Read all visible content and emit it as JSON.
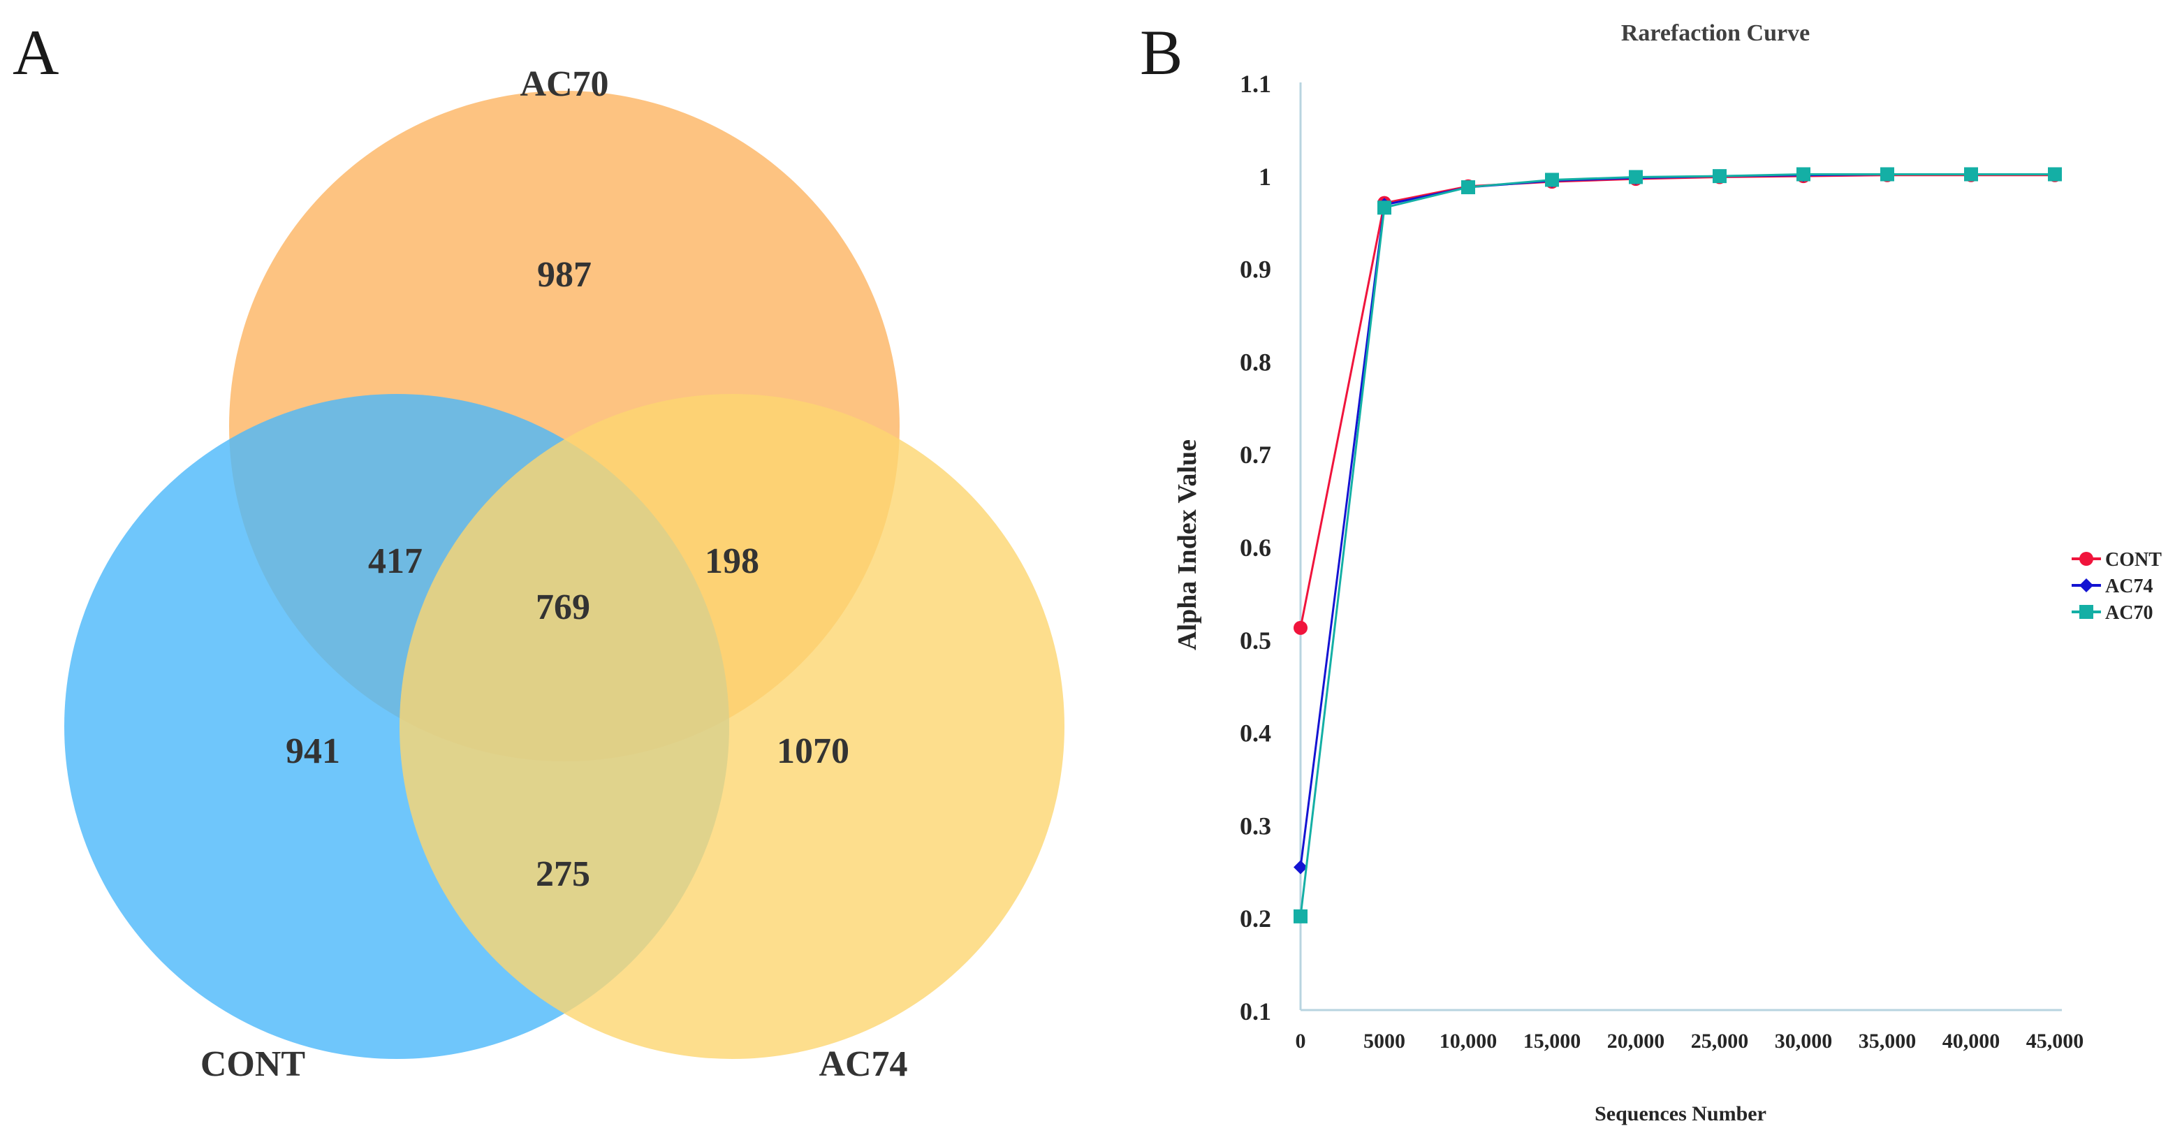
{
  "panel_a": {
    "letter": "A",
    "sets": [
      {
        "name": "AC70",
        "color": "#FDB96B",
        "opacity": 0.85
      },
      {
        "name": "CONT",
        "color": "#4BB8FA",
        "opacity": 0.8
      },
      {
        "name": "AC74",
        "color": "#FDD670",
        "opacity": 0.8
      }
    ],
    "regions": {
      "ac70_only": "987",
      "cont_only": "941",
      "ac74_only": "1070",
      "cont_ac70": "417",
      "ac70_ac74": "198",
      "cont_ac74": "275",
      "all": "769"
    }
  },
  "panel_b": {
    "letter": "B"
  },
  "chart_data": [
    {
      "type": "venn",
      "sets": [
        "AC70",
        "CONT",
        "AC74"
      ],
      "counts": {
        "AC70 only": 987,
        "CONT only": 941,
        "AC74 only": 1070,
        "CONT & AC70": 417,
        "AC70 & AC74": 198,
        "CONT & AC74": 275,
        "CONT & AC70 & AC74": 769
      }
    },
    {
      "type": "line",
      "title": "Rarefaction Curve",
      "xlabel": "Sequences Number",
      "ylabel": "Alpha Index Value",
      "x": [
        0,
        5000,
        10000,
        15000,
        20000,
        25000,
        30000,
        35000,
        40000,
        45000
      ],
      "x_tick_labels": [
        "0",
        "5000",
        "10,000",
        "15,000",
        "20,000",
        "25,000",
        "30,000",
        "35,000",
        "40,000",
        "45,000"
      ],
      "ylim": [
        0.1,
        1.1
      ],
      "y_ticks": [
        0.1,
        0.2,
        0.3,
        0.4,
        0.5,
        0.6,
        0.7,
        0.8,
        0.9,
        1,
        1.1
      ],
      "y_tick_labels": [
        "0.1",
        "0.2",
        "0.3",
        "0.4",
        "0.5",
        "0.6",
        "0.7",
        "0.8",
        "0.9",
        "1",
        "1.1"
      ],
      "legend_position": "right",
      "series": [
        {
          "name": "CONT",
          "color": "#F0143C",
          "marker": "circle",
          "values": [
            0.512,
            0.97,
            0.988,
            0.993,
            0.996,
            0.998,
            0.999,
            1.0,
            1.0,
            1.0
          ]
        },
        {
          "name": "AC74",
          "color": "#1414D2",
          "marker": "diamond",
          "values": [
            0.254,
            0.968,
            0.987,
            0.994,
            0.997,
            0.999,
            1.0,
            1.001,
            1.001,
            1.001
          ]
        },
        {
          "name": "AC70",
          "color": "#14AFA5",
          "marker": "square",
          "values": [
            0.201,
            0.965,
            0.987,
            0.995,
            0.998,
            0.999,
            1.001,
            1.001,
            1.001,
            1.001
          ]
        }
      ]
    }
  ]
}
